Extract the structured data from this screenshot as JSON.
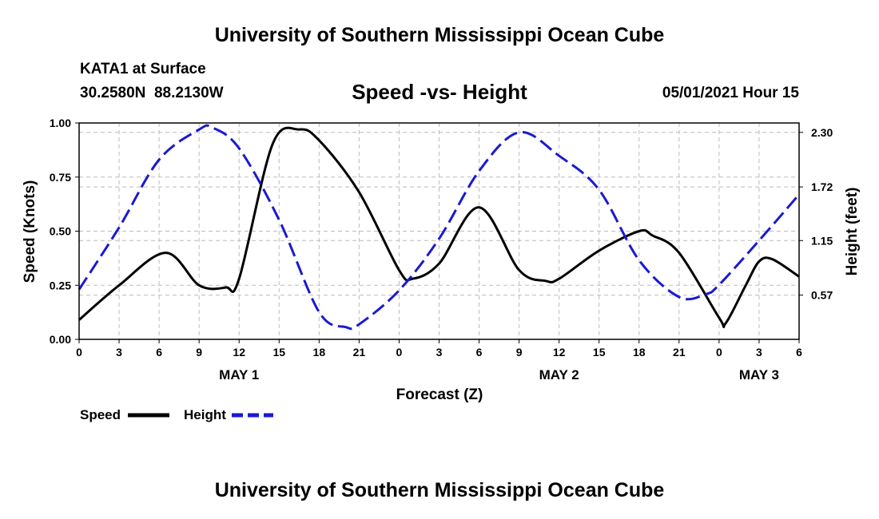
{
  "header": {
    "title": "University of Southern Mississippi Ocean Cube",
    "station": "KATA1 at Surface",
    "coords": "30.2580N  88.2130W",
    "subtitle": "Speed -vs- Height",
    "datetime": "05/01/2021 Hour 15"
  },
  "footer": {
    "title": "University of Southern Mississippi Ocean Cube"
  },
  "legend": {
    "speed_label": "Speed",
    "height_label": "Height"
  },
  "colors": {
    "speed": "#000000",
    "height": "#1a1ad0",
    "grid": "#bbbbbb"
  },
  "chart_data": {
    "type": "line",
    "title": "Speed -vs- Height",
    "xlabel": "Forecast (Z)",
    "ylabel": "Speed (Knots)",
    "y2label": "Height (feet)",
    "xlim": [
      0,
      54
    ],
    "ylim": [
      0,
      1
    ],
    "y2lim": [
      0.1,
      2.4
    ],
    "x_ticks": [
      0,
      3,
      6,
      9,
      12,
      15,
      18,
      21,
      24,
      27,
      30,
      33,
      36,
      39,
      42,
      45,
      48,
      51,
      54
    ],
    "x_tick_labels": [
      "0",
      "3",
      "6",
      "9",
      "12",
      "15",
      "18",
      "21",
      "0",
      "3",
      "6",
      "9",
      "12",
      "15",
      "18",
      "21",
      "0",
      "3",
      "6"
    ],
    "y_ticks": [
      0,
      0.25,
      0.5,
      0.75,
      1
    ],
    "y_tick_labels": [
      "0.00",
      "0.25",
      "0.50",
      "0.75",
      "1.00"
    ],
    "y2_ticks": [
      0.57,
      1.15,
      1.72,
      2.3
    ],
    "y2_tick_labels": [
      "0.57",
      "1.15",
      "1.72",
      "2.30"
    ],
    "day_labels": [
      {
        "x": 12,
        "label": "MAY 1"
      },
      {
        "x": 36,
        "label": "MAY 2"
      },
      {
        "x": 51,
        "label": "MAY 3"
      }
    ],
    "grid": true,
    "legend_position": "bottom-left",
    "series": [
      {
        "name": "Speed",
        "axis": "left",
        "style": "solid",
        "x": [
          0,
          3,
          6.5,
          9,
          11,
          12,
          14.5,
          16.5,
          18,
          21,
          24,
          25,
          27,
          30,
          33,
          35,
          36,
          39,
          42,
          43,
          45,
          48,
          48.5,
          50,
          51,
          52,
          54
        ],
        "values": [
          0.09,
          0.25,
          0.4,
          0.25,
          0.24,
          0.28,
          0.9,
          0.97,
          0.92,
          0.68,
          0.32,
          0.28,
          0.35,
          0.61,
          0.32,
          0.27,
          0.28,
          0.41,
          0.5,
          0.48,
          0.4,
          0.1,
          0.075,
          0.25,
          0.36,
          0.37,
          0.29
        ]
      },
      {
        "name": "Height",
        "axis": "right",
        "style": "dashed",
        "x": [
          0,
          3,
          6,
          9,
          10,
          12,
          15,
          18,
          20,
          21,
          24,
          27,
          30,
          33,
          36,
          39,
          42,
          45,
          47,
          48,
          51,
          54
        ],
        "values": [
          0.63,
          1.29,
          2.01,
          2.33,
          2.35,
          2.13,
          1.37,
          0.39,
          0.23,
          0.26,
          0.62,
          1.17,
          1.89,
          2.3,
          2.05,
          1.69,
          0.94,
          0.55,
          0.58,
          0.68,
          1.15,
          1.64
        ]
      }
    ]
  }
}
